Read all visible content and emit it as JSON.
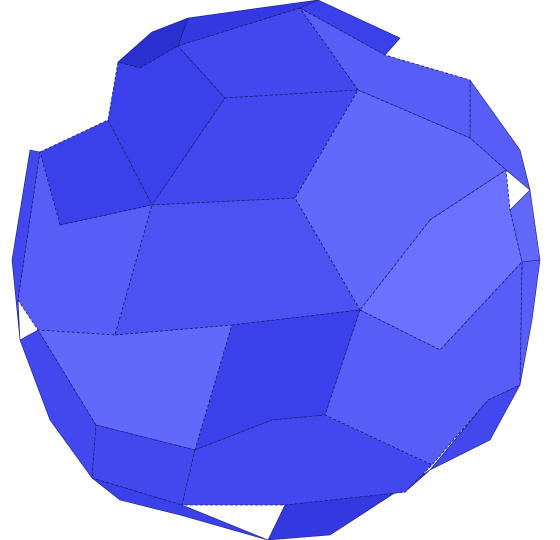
{
  "figure": {
    "subject": "polyhedron-render",
    "background_color": "#ffffff",
    "edge_color": "#1a1f7a",
    "shade_colors": {
      "darkest": "#2a2fd0",
      "dark": "#3338e0",
      "mid_dark": "#3b41ea",
      "mid": "#4348ee",
      "mid_light": "#4c52f2",
      "light": "#575df6",
      "lighter": "#6268fa",
      "lightest": "#6c72ff"
    }
  }
}
